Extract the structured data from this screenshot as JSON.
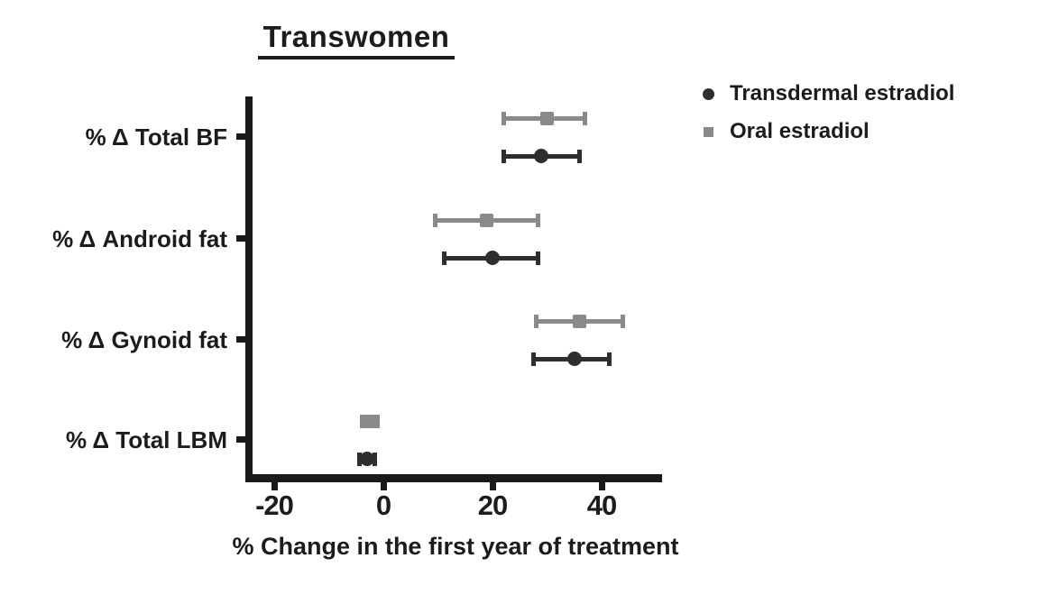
{
  "title": "Transwomen",
  "xlabel": "% Change in the first year of treatment",
  "colors": {
    "axis": "#1a1a1a",
    "transdermal": "#2e2e2e",
    "oral": "#8a8a8a"
  },
  "legend": {
    "items": [
      {
        "label": "Transdermal estradiol",
        "marker": "circle",
        "color": "#2e2e2e"
      },
      {
        "label": "Oral estradiol",
        "marker": "square",
        "color": "#8a8a8a"
      }
    ]
  },
  "chart_data": {
    "type": "scatter",
    "subtype": "horizontal point estimates with error bars (forest-style)",
    "title": "Transwomen",
    "xlabel": "% Change in the first year of treatment",
    "ylabel": "",
    "categories": [
      "% Δ Total BF",
      "% Δ Android fat",
      "% Δ Gynoid fat",
      "% Δ Total LBM"
    ],
    "xticks": [
      -20,
      0,
      20,
      40
    ],
    "xlim": [
      -25,
      51
    ],
    "grid": false,
    "legend_position": "outside top-right",
    "series": [
      {
        "name": "Transdermal estradiol",
        "marker": "circle",
        "color": "#2e2e2e",
        "values": [
          29,
          20,
          35,
          -3
        ],
        "ci_low": [
          22,
          11,
          27.5,
          -4.5
        ],
        "ci_high": [
          36,
          28.5,
          41.5,
          -1.5
        ]
      },
      {
        "name": "Oral estradiol",
        "marker": "square",
        "color": "#8a8a8a",
        "values": [
          30,
          19,
          36,
          -2.5
        ],
        "ci_low": [
          22,
          9.5,
          28,
          -4
        ],
        "ci_high": [
          37,
          28.5,
          44,
          -1
        ]
      }
    ]
  }
}
